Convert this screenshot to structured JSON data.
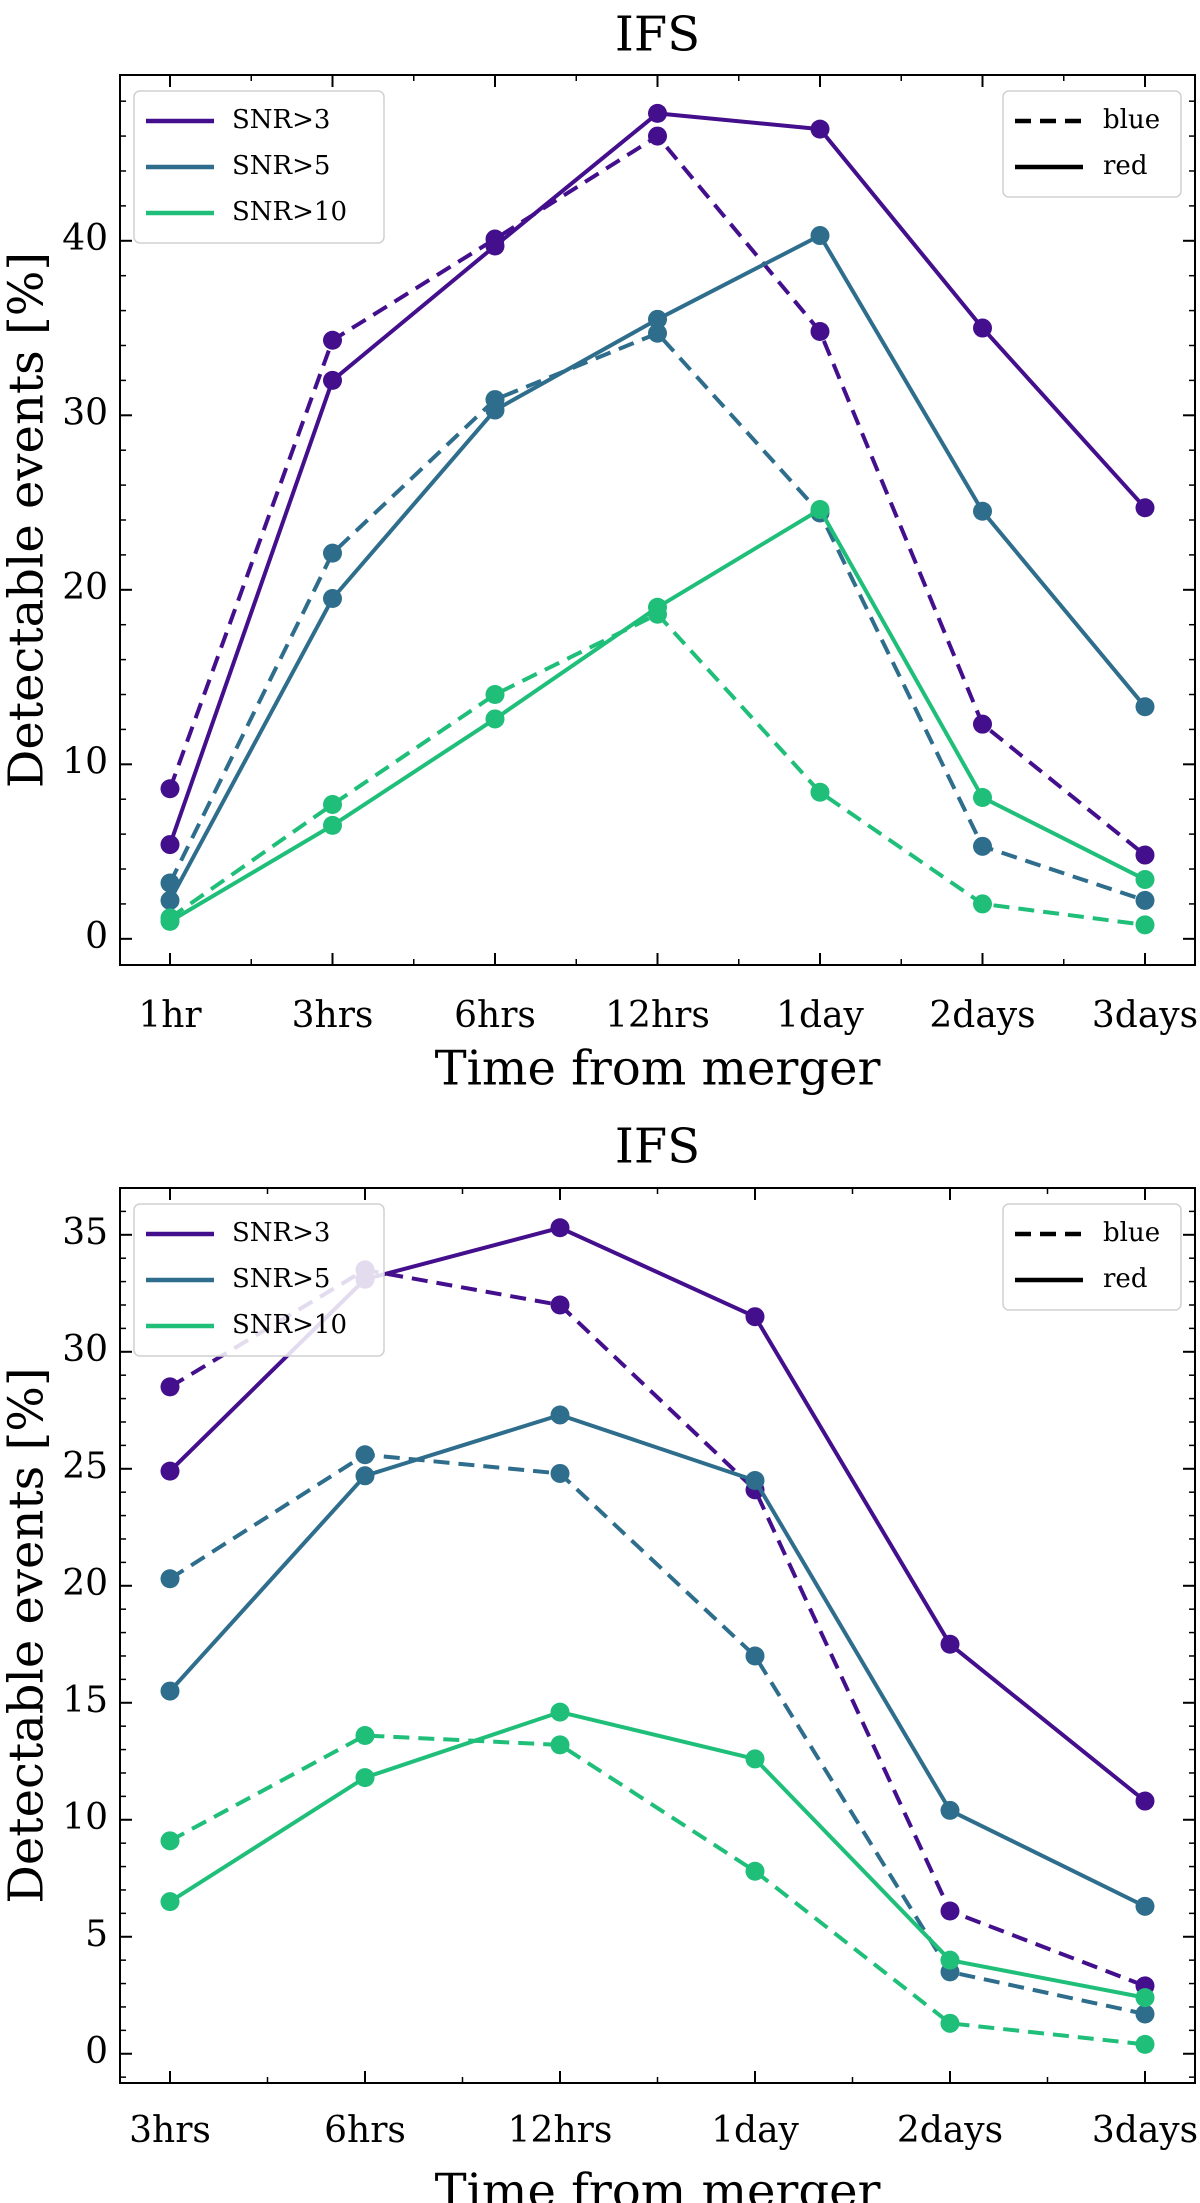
{
  "chart_data": [
    {
      "type": "line",
      "title": "IFS",
      "xlabel": "Time from merger",
      "ylabel": "Detectable events [%]",
      "categories": [
        "1hr",
        "3hrs",
        "6hrs",
        "12hrs",
        "1day",
        "2days",
        "3days"
      ],
      "ylim": [
        -1.5,
        49.5
      ],
      "yticks": [
        0,
        10,
        20,
        30,
        40
      ],
      "grid": false,
      "snr_legend_placement": "top-left",
      "style_legend_placement": "top-right",
      "snr_legend": [
        {
          "label": "SNR>3",
          "color": "#440f8c"
        },
        {
          "label": "SNR>5",
          "color": "#2e6e8c"
        },
        {
          "label": "SNR>10",
          "color": "#1fbf7a"
        }
      ],
      "style_legend": [
        {
          "label": "blue",
          "dash": true
        },
        {
          "label": "red",
          "dash": false
        }
      ],
      "series": [
        {
          "snr": "SNR>3",
          "sample": "red",
          "color": "#440f8c",
          "dash": false,
          "values": [
            5.4,
            32.0,
            39.7,
            47.3,
            46.4,
            35.0,
            24.7
          ]
        },
        {
          "snr": "SNR>3",
          "sample": "blue",
          "color": "#440f8c",
          "dash": true,
          "values": [
            8.6,
            34.3,
            40.1,
            46.0,
            34.8,
            12.3,
            4.8
          ]
        },
        {
          "snr": "SNR>5",
          "sample": "red",
          "color": "#2e6e8c",
          "dash": false,
          "values": [
            2.2,
            19.5,
            30.3,
            35.5,
            40.3,
            24.5,
            13.3
          ]
        },
        {
          "snr": "SNR>5",
          "sample": "blue",
          "color": "#2e6e8c",
          "dash": true,
          "values": [
            3.2,
            22.1,
            30.9,
            34.7,
            24.4,
            5.3,
            2.2
          ]
        },
        {
          "snr": "SNR>10",
          "sample": "red",
          "color": "#1fbf7a",
          "dash": false,
          "values": [
            1.0,
            6.5,
            12.6,
            19.0,
            24.6,
            8.1,
            3.4
          ]
        },
        {
          "snr": "SNR>10",
          "sample": "blue",
          "color": "#1fbf7a",
          "dash": true,
          "values": [
            1.2,
            7.7,
            14.0,
            18.6,
            8.4,
            2.0,
            0.8
          ]
        }
      ]
    },
    {
      "type": "line",
      "title": "IFS",
      "xlabel": "Time from merger",
      "ylabel": "Detectable events [%]",
      "categories": [
        "3hrs",
        "6hrs",
        "12hrs",
        "1day",
        "2days",
        "3days"
      ],
      "ylim": [
        -1.25,
        37.0
      ],
      "yticks": [
        0,
        5,
        10,
        15,
        20,
        25,
        30,
        35
      ],
      "grid": false,
      "snr_legend_placement": "top-left",
      "style_legend_placement": "top-right",
      "snr_legend": [
        {
          "label": "SNR>3",
          "color": "#440f8c"
        },
        {
          "label": "SNR>5",
          "color": "#2e6e8c"
        },
        {
          "label": "SNR>10",
          "color": "#1fbf7a"
        }
      ],
      "style_legend": [
        {
          "label": "blue",
          "dash": true
        },
        {
          "label": "red",
          "dash": false
        }
      ],
      "series": [
        {
          "snr": "SNR>3",
          "sample": "red",
          "color": "#440f8c",
          "dash": false,
          "values": [
            24.9,
            33.1,
            35.3,
            31.5,
            17.5,
            10.8
          ]
        },
        {
          "snr": "SNR>3",
          "sample": "blue",
          "color": "#440f8c",
          "dash": true,
          "values": [
            28.5,
            33.5,
            32.0,
            24.1,
            6.1,
            2.9
          ]
        },
        {
          "snr": "SNR>5",
          "sample": "red",
          "color": "#2e6e8c",
          "dash": false,
          "values": [
            15.5,
            24.7,
            27.3,
            24.5,
            10.4,
            6.3
          ]
        },
        {
          "snr": "SNR>5",
          "sample": "blue",
          "color": "#2e6e8c",
          "dash": true,
          "values": [
            20.3,
            25.6,
            24.8,
            17.0,
            3.5,
            1.7
          ]
        },
        {
          "snr": "SNR>10",
          "sample": "red",
          "color": "#1fbf7a",
          "dash": false,
          "values": [
            6.5,
            11.8,
            14.6,
            12.6,
            4.0,
            2.4
          ]
        },
        {
          "snr": "SNR>10",
          "sample": "blue",
          "color": "#1fbf7a",
          "dash": true,
          "values": [
            9.1,
            13.6,
            13.2,
            7.8,
            1.3,
            0.4
          ]
        }
      ]
    }
  ]
}
